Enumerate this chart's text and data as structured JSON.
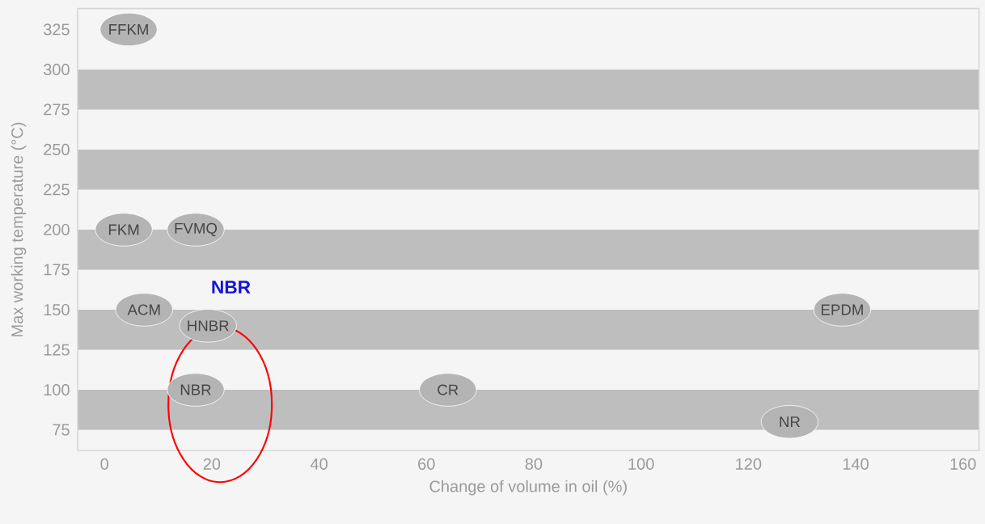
{
  "chart_data": {
    "type": "scatter",
    "xlabel": "Change of volume in oil (%)",
    "ylabel": "Max working temperature (°C)",
    "x": [
      4.5,
      3.6,
      17,
      7.4,
      19.3,
      17,
      64,
      137.5,
      127.7
    ],
    "series": [
      {
        "color": "#b4b4b4",
        "values": [
          325,
          200,
          200,
          150,
          140,
          100,
          100,
          150,
          80
        ],
        "value_labels": [
          "FFKM",
          "FKM",
          "FVMQ",
          "ACM",
          "HNBR",
          "NBR",
          "CR",
          "EPDM",
          "NR"
        ]
      }
    ],
    "xlim": [
      -5,
      163
    ],
    "ylim": [
      62,
      338
    ],
    "xticks": [
      0,
      20,
      40,
      60,
      80,
      100,
      120,
      140,
      160
    ],
    "yticks": [
      75,
      100,
      125,
      150,
      175,
      200,
      225,
      250,
      275,
      300,
      325
    ],
    "bands": [
      {
        "axis": "y",
        "from": 75,
        "to": 100,
        "color": "#bebebe"
      },
      {
        "axis": "y",
        "from": 125,
        "to": 150,
        "color": "#bebebe"
      },
      {
        "axis": "y",
        "from": 175,
        "to": 200,
        "color": "#bebebe"
      },
      {
        "axis": "y",
        "from": 225,
        "to": 250,
        "color": "#bebebe"
      },
      {
        "axis": "y",
        "from": 275,
        "to": 300,
        "color": "#bebebe"
      }
    ],
    "annotations": [
      "NBR"
    ],
    "grid": false
  }
}
